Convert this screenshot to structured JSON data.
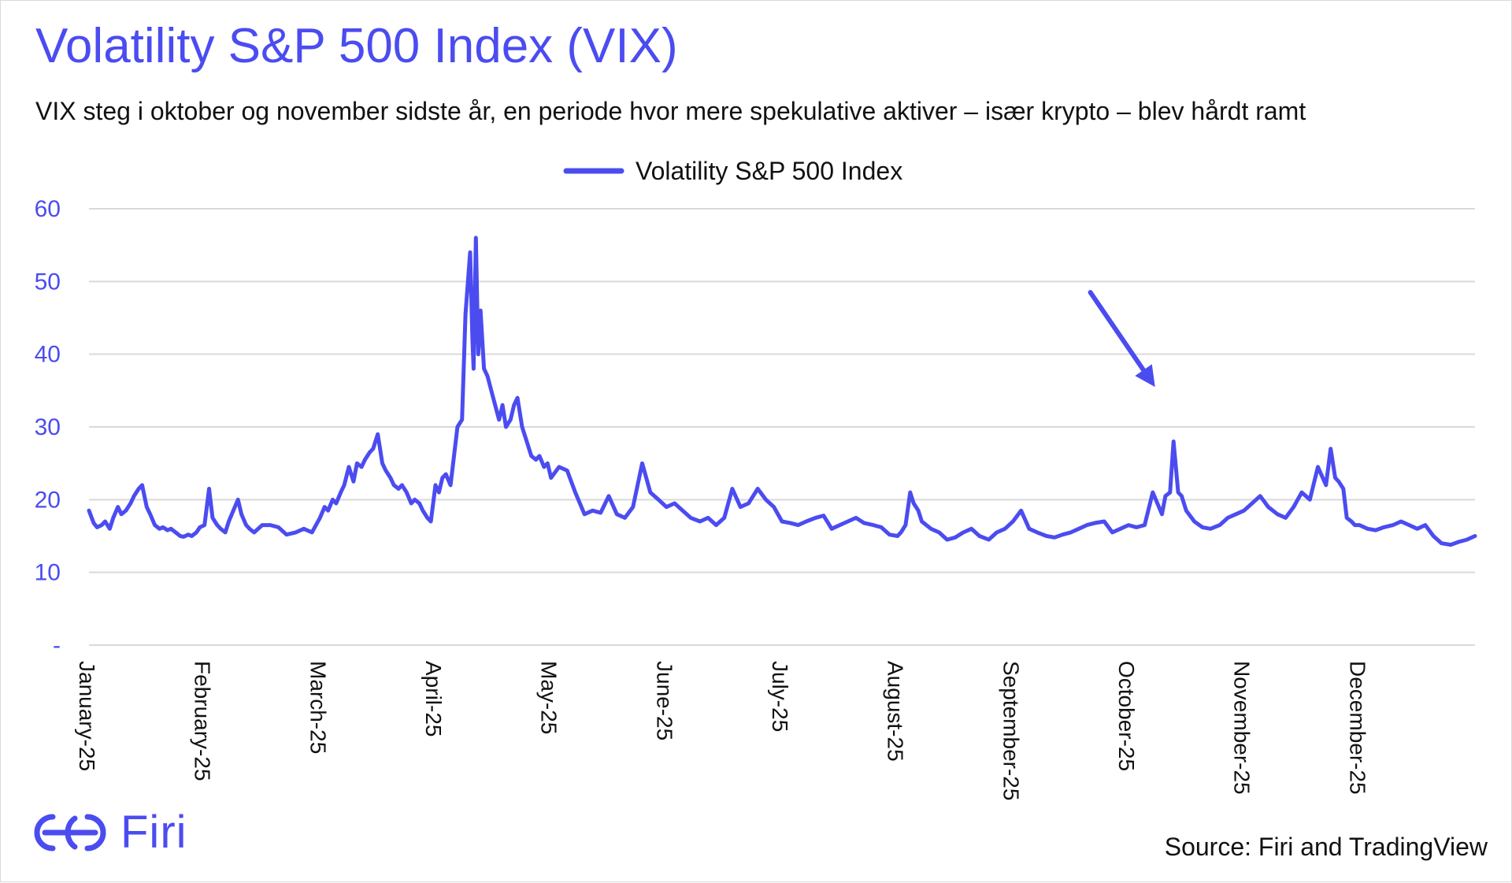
{
  "header": {
    "title": "Volatility S&P 500 Index (VIX)",
    "subtitle": "VIX steg i oktober og november sidste år, en periode hvor mere spekulative aktiver – især krypto – blev hårdt ramt"
  },
  "footer": {
    "brand": "Firi",
    "source": "Source: Firi and TradingView"
  },
  "colors": {
    "accent": "#4b4cf0",
    "grid": "#d9d9d9",
    "text": "#111111"
  },
  "icons": {
    "brand_logo": "firi-logo-icon",
    "annotation": "arrow-icon"
  },
  "chart_data": {
    "type": "line",
    "title": "Volatility S&P 500 Index (VIX)",
    "legend": {
      "entries": [
        "Volatility S&P 500 Index"
      ],
      "position": "top-center"
    },
    "grid": true,
    "ylim": [
      0,
      60
    ],
    "yticks": [
      0,
      10,
      20,
      30,
      40,
      50,
      60
    ],
    "ytick_labels": [
      "-",
      "10",
      "20",
      "30",
      "40",
      "50",
      "60"
    ],
    "xlim": [
      0,
      12
    ],
    "xticks": [
      0,
      1,
      2,
      3,
      4,
      5,
      6,
      7,
      8,
      9,
      10,
      11
    ],
    "xtick_labels": [
      "January-25",
      "February-25",
      "March-25",
      "April-25",
      "May-25",
      "June-25",
      "July-25",
      "August-25",
      "September-25",
      "October-25",
      "November-25",
      "December-25"
    ],
    "series": [
      {
        "name": "Volatility S&P 500 Index",
        "x": [
          0.0,
          0.04,
          0.07,
          0.11,
          0.14,
          0.18,
          0.21,
          0.25,
          0.28,
          0.32,
          0.36,
          0.39,
          0.43,
          0.46,
          0.5,
          0.53,
          0.57,
          0.61,
          0.64,
          0.68,
          0.71,
          0.75,
          0.79,
          0.82,
          0.86,
          0.89,
          0.93,
          0.96,
          1.0,
          1.04,
          1.07,
          1.11,
          1.14,
          1.18,
          1.21,
          1.25,
          1.29,
          1.32,
          1.36,
          1.39,
          1.43,
          1.5,
          1.57,
          1.64,
          1.71,
          1.79,
          1.86,
          1.93,
          2.0,
          2.04,
          2.07,
          2.11,
          2.14,
          2.18,
          2.21,
          2.25,
          2.29,
          2.32,
          2.36,
          2.39,
          2.43,
          2.46,
          2.5,
          2.54,
          2.57,
          2.61,
          2.64,
          2.68,
          2.71,
          2.75,
          2.79,
          2.82,
          2.86,
          2.89,
          2.93,
          2.96,
          3.0,
          3.03,
          3.06,
          3.09,
          3.13,
          3.16,
          3.19,
          3.23,
          3.26,
          3.3,
          3.32,
          3.33,
          3.35,
          3.37,
          3.39,
          3.42,
          3.45,
          3.5,
          3.55,
          3.58,
          3.61,
          3.65,
          3.68,
          3.71,
          3.75,
          3.79,
          3.83,
          3.87,
          3.9,
          3.94,
          3.97,
          4.0,
          4.07,
          4.14,
          4.21,
          4.29,
          4.36,
          4.43,
          4.5,
          4.57,
          4.64,
          4.71,
          4.79,
          4.86,
          4.93,
          5.0,
          5.07,
          5.14,
          5.21,
          5.29,
          5.36,
          5.43,
          5.5,
          5.57,
          5.64,
          5.71,
          5.79,
          5.86,
          5.93,
          6.0,
          6.07,
          6.14,
          6.21,
          6.29,
          6.36,
          6.43,
          6.5,
          6.57,
          6.64,
          6.71,
          6.79,
          6.86,
          6.93,
          7.0,
          7.03,
          7.07,
          7.11,
          7.14,
          7.18,
          7.21,
          7.29,
          7.36,
          7.43,
          7.5,
          7.57,
          7.64,
          7.71,
          7.79,
          7.86,
          7.93,
          8.0,
          8.07,
          8.14,
          8.21,
          8.29,
          8.36,
          8.43,
          8.5,
          8.57,
          8.64,
          8.71,
          8.79,
          8.86,
          8.93,
          9.0,
          9.07,
          9.14,
          9.21,
          9.25,
          9.29,
          9.32,
          9.36,
          9.39,
          9.43,
          9.46,
          9.5,
          9.57,
          9.64,
          9.71,
          9.79,
          9.86,
          9.93,
          10.0,
          10.07,
          10.14,
          10.21,
          10.29,
          10.36,
          10.43,
          10.5,
          10.57,
          10.64,
          10.71,
          10.75,
          10.79,
          10.82,
          10.86,
          10.89,
          10.93,
          10.96,
          11.0,
          11.07,
          11.14,
          11.21,
          11.29,
          11.36,
          11.43,
          11.5,
          11.57,
          11.64,
          11.71,
          11.79,
          11.86,
          11.93,
          12.0
        ],
        "values": [
          18.5,
          16.8,
          16.2,
          16.5,
          17.0,
          16.0,
          17.5,
          19.0,
          18.0,
          18.5,
          19.5,
          20.5,
          21.5,
          22.0,
          19.0,
          18.0,
          16.5,
          16.0,
          16.2,
          15.8,
          16.0,
          15.5,
          15.0,
          14.9,
          15.2,
          15.0,
          15.5,
          16.2,
          16.5,
          21.5,
          17.5,
          16.5,
          16.0,
          15.5,
          17.0,
          18.5,
          20.0,
          18.0,
          16.5,
          16.0,
          15.5,
          16.5,
          16.5,
          16.2,
          15.2,
          15.5,
          16.0,
          15.5,
          17.5,
          19.0,
          18.5,
          20.0,
          19.5,
          21.0,
          22.0,
          24.5,
          22.5,
          25.0,
          24.5,
          25.5,
          26.5,
          27.0,
          29.0,
          25.0,
          24.0,
          23.0,
          22.0,
          21.5,
          22.0,
          21.0,
          19.5,
          20.0,
          19.5,
          18.5,
          17.5,
          17.0,
          22.0,
          21.0,
          23.0,
          23.5,
          22.0,
          26.0,
          30.0,
          31.0,
          45.5,
          54.0,
          42.0,
          38.0,
          56.0,
          40.0,
          46.0,
          38.0,
          37.0,
          34.0,
          31.0,
          33.0,
          30.0,
          31.0,
          33.0,
          34.0,
          30.0,
          28.0,
          26.0,
          25.5,
          26.0,
          24.5,
          25.0,
          23.0,
          24.5,
          24.0,
          21.0,
          18.0,
          18.5,
          18.2,
          20.5,
          18.0,
          17.5,
          19.0,
          25.0,
          21.0,
          20.0,
          19.0,
          19.5,
          18.5,
          17.5,
          17.0,
          17.5,
          16.5,
          17.5,
          21.5,
          19.0,
          19.5,
          21.5,
          20.0,
          19.0,
          17.0,
          16.8,
          16.5,
          17.0,
          17.5,
          17.8,
          16.0,
          16.5,
          17.0,
          17.5,
          16.8,
          16.5,
          16.2,
          15.2,
          15.0,
          15.5,
          16.5,
          21.0,
          19.5,
          18.5,
          17.0,
          16.0,
          15.5,
          14.5,
          14.8,
          15.5,
          16.0,
          15.0,
          14.5,
          15.5,
          16.0,
          17.0,
          18.5,
          16.0,
          15.5,
          15.0,
          14.8,
          15.2,
          15.5,
          16.0,
          16.5,
          16.8,
          17.0,
          15.5,
          16.0,
          16.5,
          16.2,
          16.5,
          21.0,
          19.5,
          18.0,
          20.5,
          21.0,
          28.0,
          21.0,
          20.5,
          18.5,
          17.0,
          16.2,
          16.0,
          16.5,
          17.5,
          18.0,
          18.5,
          19.5,
          20.5,
          19.0,
          18.0,
          17.5,
          19.0,
          21.0,
          20.0,
          24.5,
          22.0,
          27.0,
          23.0,
          22.5,
          21.5,
          17.5,
          17.0,
          16.5,
          16.5,
          16.0,
          15.8,
          16.2,
          16.5,
          17.0,
          16.5,
          16.0,
          16.5,
          15.0,
          14.0,
          13.8,
          14.2,
          14.5,
          15.0
        ]
      }
    ],
    "annotations": [
      {
        "type": "arrow",
        "text": "",
        "from": [
          8.67,
          48.5
        ],
        "to": [
          9.23,
          35.5
        ]
      }
    ]
  }
}
